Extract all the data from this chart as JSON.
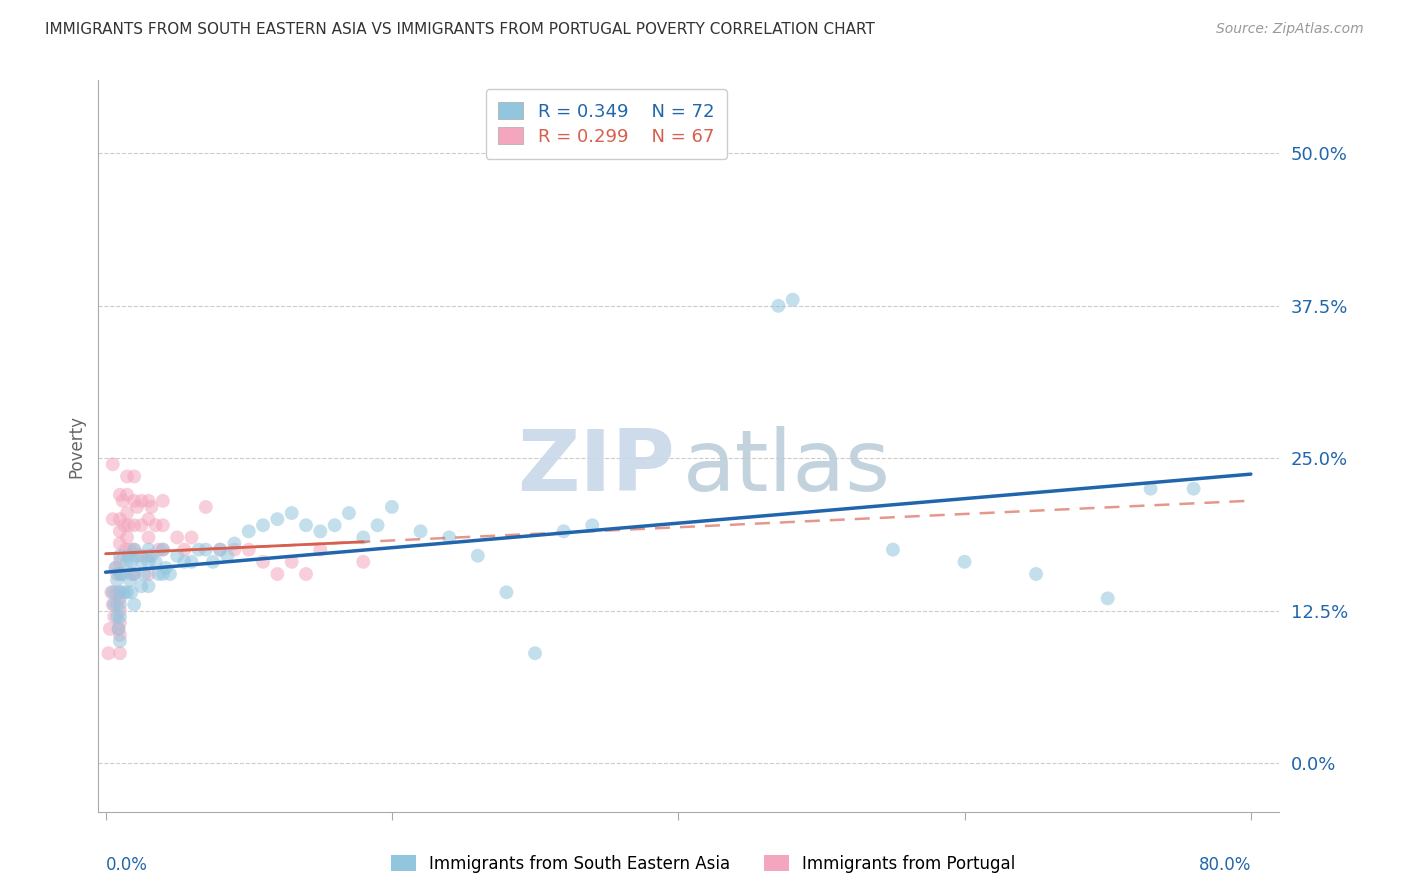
{
  "title": "IMMIGRANTS FROM SOUTH EASTERN ASIA VS IMMIGRANTS FROM PORTUGAL POVERTY CORRELATION CHART",
  "source": "Source: ZipAtlas.com",
  "ylabel": "Poverty",
  "ytick_labels": [
    "0.0%",
    "12.5%",
    "25.0%",
    "37.5%",
    "50.0%"
  ],
  "ytick_values": [
    0.0,
    0.125,
    0.25,
    0.375,
    0.5
  ],
  "xtick_values": [
    0.0,
    0.2,
    0.4,
    0.6,
    0.8
  ],
  "xlim": [
    -0.005,
    0.82
  ],
  "ylim": [
    -0.04,
    0.56
  ],
  "legend1_label": "Immigrants from South Eastern Asia",
  "legend2_label": "Immigrants from Portugal",
  "R1": 0.349,
  "N1": 72,
  "R2": 0.299,
  "N2": 67,
  "color_blue": "#92c5de",
  "color_pink": "#f4a6be",
  "color_blue_line": "#2166ac",
  "color_pink_line": "#d6604d",
  "watermark_zip_color": "#c8d8e8",
  "watermark_atlas_color": "#b8ccd8",
  "blue_x": [
    0.005,
    0.006,
    0.007,
    0.008,
    0.008,
    0.009,
    0.01,
    0.01,
    0.01,
    0.01,
    0.01,
    0.01,
    0.012,
    0.013,
    0.015,
    0.015,
    0.016,
    0.017,
    0.018,
    0.018,
    0.02,
    0.02,
    0.02,
    0.022,
    0.025,
    0.025,
    0.027,
    0.03,
    0.03,
    0.03,
    0.032,
    0.035,
    0.037,
    0.04,
    0.04,
    0.042,
    0.045,
    0.05,
    0.055,
    0.06,
    0.065,
    0.07,
    0.075,
    0.08,
    0.085,
    0.09,
    0.1,
    0.11,
    0.12,
    0.13,
    0.14,
    0.15,
    0.16,
    0.17,
    0.18,
    0.19,
    0.2,
    0.22,
    0.24,
    0.26,
    0.28,
    0.3,
    0.32,
    0.34,
    0.47,
    0.48,
    0.55,
    0.6,
    0.65,
    0.7,
    0.73,
    0.76
  ],
  "blue_y": [
    0.14,
    0.13,
    0.16,
    0.15,
    0.12,
    0.11,
    0.17,
    0.155,
    0.14,
    0.13,
    0.12,
    0.1,
    0.155,
    0.14,
    0.165,
    0.14,
    0.17,
    0.15,
    0.165,
    0.14,
    0.175,
    0.155,
    0.13,
    0.17,
    0.165,
    0.145,
    0.155,
    0.175,
    0.165,
    0.145,
    0.17,
    0.165,
    0.155,
    0.175,
    0.155,
    0.16,
    0.155,
    0.17,
    0.165,
    0.165,
    0.175,
    0.175,
    0.165,
    0.175,
    0.17,
    0.18,
    0.19,
    0.195,
    0.2,
    0.205,
    0.195,
    0.19,
    0.195,
    0.205,
    0.185,
    0.195,
    0.21,
    0.19,
    0.185,
    0.17,
    0.14,
    0.09,
    0.19,
    0.195,
    0.375,
    0.38,
    0.175,
    0.165,
    0.155,
    0.135,
    0.225,
    0.225
  ],
  "pink_x": [
    0.002,
    0.003,
    0.004,
    0.005,
    0.005,
    0.005,
    0.006,
    0.007,
    0.007,
    0.008,
    0.008,
    0.009,
    0.01,
    0.01,
    0.01,
    0.01,
    0.01,
    0.01,
    0.01,
    0.01,
    0.01,
    0.01,
    0.01,
    0.01,
    0.012,
    0.013,
    0.014,
    0.015,
    0.015,
    0.015,
    0.015,
    0.016,
    0.017,
    0.018,
    0.02,
    0.02,
    0.02,
    0.02,
    0.02,
    0.022,
    0.025,
    0.025,
    0.025,
    0.03,
    0.03,
    0.03,
    0.03,
    0.03,
    0.032,
    0.035,
    0.037,
    0.04,
    0.04,
    0.04,
    0.05,
    0.055,
    0.06,
    0.07,
    0.08,
    0.09,
    0.1,
    0.11,
    0.12,
    0.13,
    0.14,
    0.15,
    0.18
  ],
  "pink_y": [
    0.09,
    0.11,
    0.14,
    0.245,
    0.2,
    0.13,
    0.12,
    0.16,
    0.14,
    0.155,
    0.13,
    0.11,
    0.22,
    0.2,
    0.19,
    0.18,
    0.165,
    0.155,
    0.14,
    0.135,
    0.125,
    0.115,
    0.105,
    0.09,
    0.215,
    0.195,
    0.175,
    0.235,
    0.22,
    0.205,
    0.185,
    0.195,
    0.175,
    0.155,
    0.235,
    0.215,
    0.195,
    0.175,
    0.155,
    0.21,
    0.215,
    0.195,
    0.17,
    0.215,
    0.2,
    0.185,
    0.17,
    0.155,
    0.21,
    0.195,
    0.175,
    0.215,
    0.195,
    0.175,
    0.185,
    0.175,
    0.185,
    0.21,
    0.175,
    0.175,
    0.175,
    0.165,
    0.155,
    0.165,
    0.155,
    0.175,
    0.165
  ]
}
